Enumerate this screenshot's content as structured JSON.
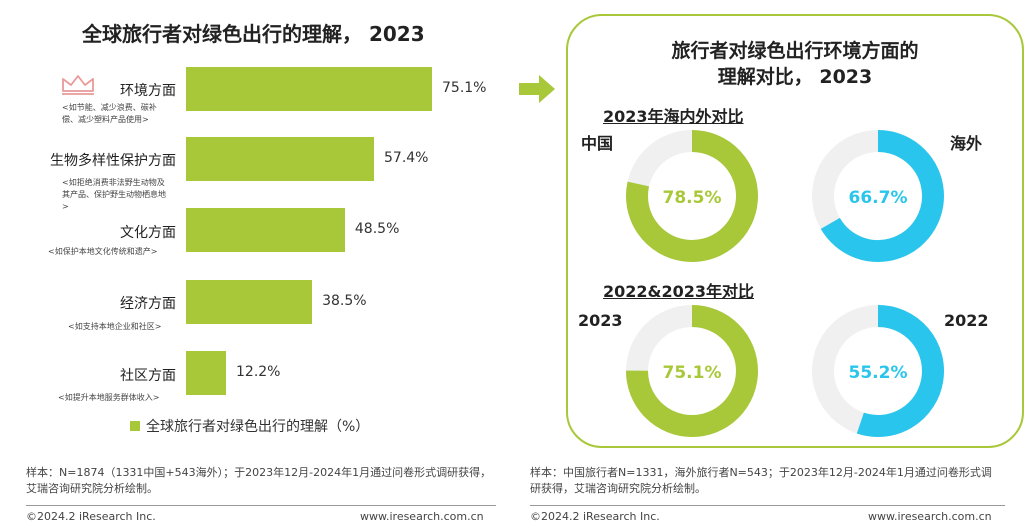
{
  "left_chart": {
    "title": "全球旅行者对绿色出行的理解， 2023",
    "legend": "全球旅行者对绿色出行的理解（%）",
    "notes": [
      "<如节能、减少浪费、碳补偿、减少塑料产品使用>",
      "<如拒绝消费非法野生动物及其产品、保护野生动物栖息地>",
      "<如保护本地文化传统和遗产>",
      "<如支持本地企业和社区>",
      "<如提升本地服务群体收入>"
    ],
    "icon": "crown-icon",
    "accent_color": "#a8c83a"
  },
  "right_panel": {
    "title_line1": "旅行者对绿色出行环境方面的",
    "title_line2": "理解对比， 2023",
    "section1_title": "2023年海内外对比",
    "section2_title": "2022&2023年对比",
    "label_china": "中国",
    "label_overseas": "海外",
    "label_2023": "2023",
    "label_2022": "2022"
  },
  "chart_data": [
    {
      "type": "bar",
      "orientation": "horizontal",
      "title": "全球旅行者对绿色出行的理解， 2023",
      "categories": [
        "环境方面",
        "生物多样性保护方面",
        "文化方面",
        "经济方面",
        "社区方面"
      ],
      "values": [
        75.1,
        57.4,
        48.5,
        38.5,
        12.2
      ],
      "value_labels": [
        "75.1%",
        "57.4%",
        "48.5%",
        "38.5%",
        "12.2%"
      ],
      "series_name": "全球旅行者对绿色出行的理解（%）",
      "xlim": [
        0,
        100
      ]
    },
    {
      "type": "pie",
      "style": "donut",
      "section": "2023年海内外对比",
      "slices": [
        {
          "name": "中国",
          "value": 78.5,
          "label": "78.5%",
          "color": "#a8c83a"
        },
        {
          "name": "海外",
          "value": 66.7,
          "label": "66.7%",
          "color": "#29c5ec"
        }
      ]
    },
    {
      "type": "pie",
      "style": "donut",
      "section": "2022&2023年对比",
      "slices": [
        {
          "name": "2023",
          "value": 75.1,
          "label": "75.1%",
          "color": "#a8c83a"
        },
        {
          "name": "2022",
          "value": 55.2,
          "label": "55.2%",
          "color": "#29c5ec"
        }
      ]
    }
  ],
  "footnotes": {
    "left": "样本：N=1874（1331中国+543海外）；于2023年12月-2024年1月通过问卷形式调研获得，艾瑞咨询研究院分析绘制。",
    "right": "样本：中国旅行者N=1331，海外旅行者N=543；于2023年12月-2024年1月通过问卷形式调研获得，艾瑞咨询研究院分析绘制。"
  },
  "footer": {
    "copyright": "©2024.2 iResearch Inc.",
    "url": "www.iresearch.com.cn"
  },
  "arrow_color": "#a8c83a"
}
